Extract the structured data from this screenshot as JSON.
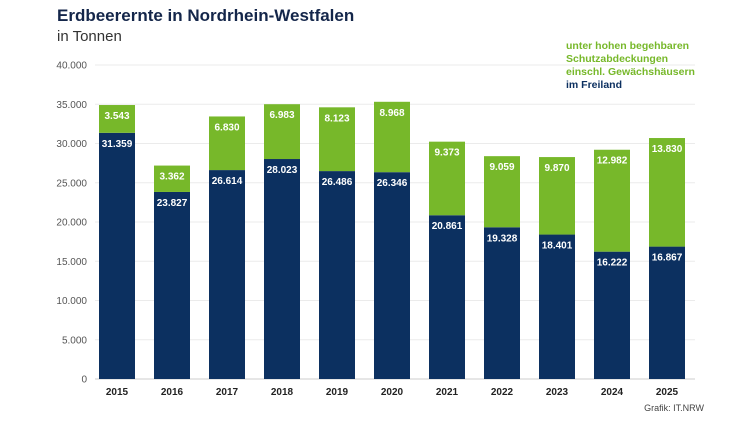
{
  "chart_data": {
    "type": "bar",
    "stacked": true,
    "title": "Erdbeerernte in Nordrhein-Westfalen",
    "subtitle": "in Tonnen",
    "categories": [
      "2015",
      "2016",
      "2017",
      "2018",
      "2019",
      "2020",
      "2021",
      "2022",
      "2023",
      "2024",
      "2025"
    ],
    "series": [
      {
        "name": "im Freiland",
        "color": "#0c3060",
        "values": [
          31359,
          23827,
          26614,
          28023,
          26486,
          26346,
          20861,
          19328,
          18401,
          16222,
          16867
        ],
        "labels": [
          "31.359",
          "23.827",
          "26.614",
          "28.023",
          "26.486",
          "26.346",
          "20.861",
          "19.328",
          "18.401",
          "16.222",
          "16.867"
        ]
      },
      {
        "name": "unter hohen begehbaren Schutzabdeckungen einschl. Gewächshäusern",
        "color": "#77b82a",
        "values": [
          3543,
          3362,
          6830,
          6983,
          8123,
          8968,
          9373,
          9059,
          9870,
          12982,
          13830
        ],
        "labels": [
          "3.543",
          "3.362",
          "6.830",
          "6.983",
          "8.123",
          "8.968",
          "9.373",
          "9.059",
          "9.870",
          "12.982",
          "13.830"
        ]
      }
    ],
    "ylim": [
      0,
      40000
    ],
    "yticks": [
      0,
      5000,
      10000,
      15000,
      20000,
      25000,
      30000,
      35000,
      40000
    ],
    "ytick_labels": [
      "0",
      "5.000",
      "10.000",
      "15.000",
      "20.000",
      "25.000",
      "30.000",
      "35.000",
      "40.000"
    ],
    "grid": true,
    "legend_placement": "top-right",
    "legend": {
      "green_lines": [
        "unter hohen begehbaren",
        "Schutzabdeckungen",
        "einschl. Gewächshäusern"
      ],
      "navy": "im Freiland"
    },
    "source": "Grafik: IT.NRW"
  }
}
